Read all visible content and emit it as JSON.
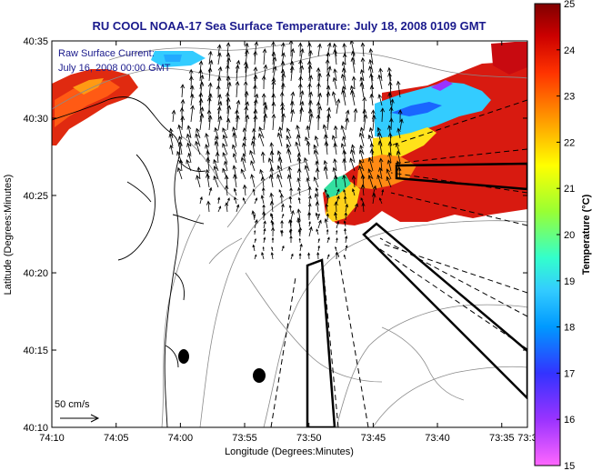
{
  "chart_data": {
    "type": "heatmap",
    "title": "RU COOL   NOAA-17  Sea Surface Temperature:  July 18, 2008 0109 GMT",
    "xlabel": "Longitude (Degrees:Minutes)",
    "ylabel": "Latitude (Degrees:Minutes)",
    "xlim": [
      -74.1667,
      -73.55
    ],
    "ylim": [
      40.1667,
      40.5833
    ],
    "x_ticks": [
      {
        "value": -74.1667,
        "label": "74:10"
      },
      {
        "value": -74.0833,
        "label": "74:05"
      },
      {
        "value": -74.0,
        "label": "74:00"
      },
      {
        "value": -73.9167,
        "label": "73:55"
      },
      {
        "value": -73.8333,
        "label": "73:50"
      },
      {
        "value": -73.75,
        "label": "73:45"
      },
      {
        "value": -73.6667,
        "label": "73:40"
      },
      {
        "value": -73.5833,
        "label": "73:35"
      },
      {
        "value": -73.55,
        "label": "73:3"
      }
    ],
    "y_ticks": [
      {
        "value": 40.1667,
        "label": "40:10"
      },
      {
        "value": 40.25,
        "label": "40:15"
      },
      {
        "value": 40.3333,
        "label": "40:20"
      },
      {
        "value": 40.4167,
        "label": "40:25"
      },
      {
        "value": 40.5,
        "label": "40:30"
      },
      {
        "value": 40.5833,
        "label": "40:35"
      }
    ],
    "current_annotation": [
      "Raw Surface Current:",
      "July 16, 2008 00:00 GMT"
    ],
    "scale_label": "50 cm/s",
    "colorbar": {
      "label": "Temperature (°C)",
      "range": [
        15,
        25
      ],
      "ticks": [
        {
          "value": 15,
          "label": "15"
        },
        {
          "value": 16,
          "label": "16"
        },
        {
          "value": 17,
          "label": "17"
        },
        {
          "value": 18,
          "label": "18"
        },
        {
          "value": 19,
          "label": "19"
        },
        {
          "value": 20,
          "label": "20"
        },
        {
          "value": 21,
          "label": "21"
        },
        {
          "value": 22,
          "label": "22"
        },
        {
          "value": 23,
          "label": "23"
        },
        {
          "value": 24,
          "label": "24"
        },
        {
          "value": 25,
          "label": "25"
        }
      ],
      "colors": [
        "#ff66ff",
        "#9933ff",
        "#3333ff",
        "#0099ff",
        "#33ccff",
        "#33ffcc",
        "#99ff33",
        "#ffff00",
        "#ff9900",
        "#ff3300",
        "#cc0000",
        "#800000"
      ]
    },
    "grid": false,
    "legend": "right"
  }
}
